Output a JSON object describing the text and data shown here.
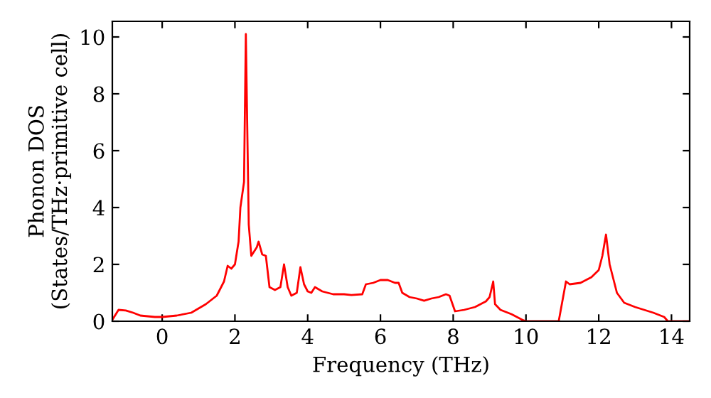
{
  "chart_data": {
    "type": "line",
    "xlabel": "Frequency (THz)",
    "ylabel": "Phonon DOS\n(States/THz·primitive cell)",
    "x": [
      -1.37,
      -1.2,
      -1.0,
      -0.8,
      -0.6,
      -0.2,
      0,
      0.4,
      0.8,
      1.2,
      1.5,
      1.7,
      1.8,
      1.9,
      2.0,
      2.1,
      2.15,
      2.25,
      2.3,
      2.38,
      2.45,
      2.6,
      2.65,
      2.75,
      2.85,
      2.95,
      3.1,
      3.25,
      3.35,
      3.45,
      3.55,
      3.7,
      3.8,
      3.9,
      4.0,
      4.1,
      4.2,
      4.4,
      4.7,
      5.0,
      5.2,
      5.5,
      5.6,
      5.8,
      6.0,
      6.2,
      6.4,
      6.5,
      6.6,
      6.8,
      7.0,
      7.2,
      7.4,
      7.6,
      7.8,
      7.9,
      8.05,
      8.3,
      8.6,
      8.9,
      9.0,
      9.1,
      9.15,
      9.3,
      9.6,
      9.9,
      10.0,
      10.5,
      10.9,
      11.1,
      11.2,
      11.5,
      11.8,
      12.0,
      12.1,
      12.2,
      12.3,
      12.5,
      12.7,
      13.0,
      13.5,
      13.8,
      13.9,
      14.5
    ],
    "series": [
      {
        "color": "#ff0000",
        "values": [
          0.05,
          0.4,
          0.38,
          0.3,
          0.2,
          0.15,
          0.15,
          0.2,
          0.3,
          0.6,
          0.9,
          1.4,
          1.95,
          1.85,
          2.0,
          2.8,
          4.0,
          4.9,
          10.1,
          3.4,
          2.3,
          2.6,
          2.8,
          2.35,
          2.3,
          1.2,
          1.1,
          1.2,
          2.0,
          1.2,
          0.9,
          1.0,
          1.9,
          1.3,
          1.05,
          1.0,
          1.2,
          1.05,
          0.95,
          0.95,
          0.92,
          0.95,
          1.3,
          1.35,
          1.45,
          1.45,
          1.35,
          1.35,
          1.0,
          0.85,
          0.8,
          0.72,
          0.8,
          0.85,
          0.95,
          0.9,
          0.35,
          0.4,
          0.5,
          0.7,
          0.85,
          1.4,
          0.6,
          0.4,
          0.25,
          0.05,
          0,
          0,
          0,
          1.4,
          1.3,
          1.35,
          1.55,
          1.8,
          2.3,
          3.05,
          2.0,
          1.0,
          0.65,
          0.5,
          0.3,
          0.15,
          0,
          0
        ]
      }
    ],
    "xlim": [
      -1.37,
      14.5
    ],
    "ylim": [
      0,
      10.55
    ],
    "xticks": [
      0,
      2,
      4,
      6,
      8,
      10,
      12,
      14
    ],
    "yticks": [
      0,
      2,
      4,
      6,
      8,
      10
    ],
    "grid": false,
    "legend": false,
    "marker": "none",
    "line_style": "solid"
  }
}
